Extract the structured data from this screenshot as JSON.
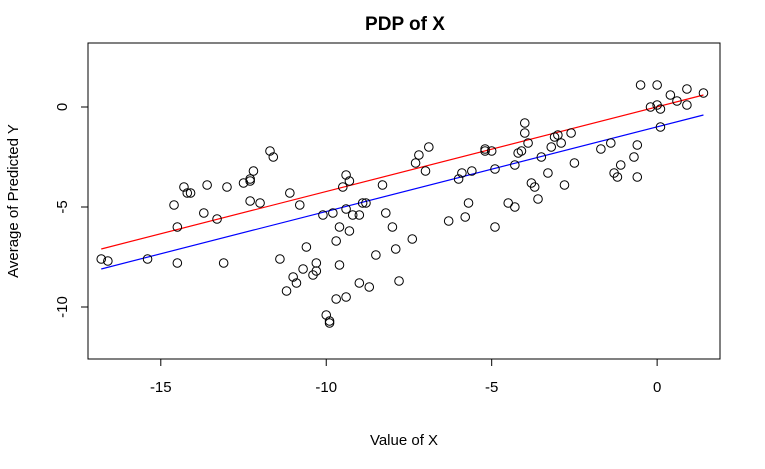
{
  "chart_data": {
    "type": "scatter",
    "title": "PDP of X",
    "xlabel": "Value of X",
    "ylabel": "Average of Predicted Y",
    "xlim": [
      -17.2,
      1.9
    ],
    "ylim": [
      -12.6,
      3.2
    ],
    "xticks": [
      -15,
      -10,
      -5,
      0
    ],
    "xtick_labels": [
      "-15",
      "-10",
      "-5",
      "0"
    ],
    "yticks": [
      -10,
      -5,
      0
    ],
    "ytick_labels": [
      "-10",
      "-5",
      "0"
    ],
    "grid": false,
    "points": [
      [
        -16.8,
        -7.6
      ],
      [
        -16.6,
        -7.7
      ],
      [
        -15.4,
        -7.6
      ],
      [
        -14.6,
        -4.9
      ],
      [
        -14.5,
        -6.0
      ],
      [
        -14.5,
        -7.8
      ],
      [
        -14.3,
        -4.0
      ],
      [
        -14.2,
        -4.3
      ],
      [
        -14.1,
        -4.3
      ],
      [
        -13.7,
        -5.3
      ],
      [
        -13.6,
        -3.9
      ],
      [
        -13.3,
        -5.6
      ],
      [
        -13.1,
        -7.8
      ],
      [
        -13.0,
        -4.0
      ],
      [
        -12.5,
        -3.8
      ],
      [
        -12.3,
        -3.7
      ],
      [
        -12.3,
        -4.7
      ],
      [
        -12.3,
        -3.6
      ],
      [
        -12.2,
        -3.2
      ],
      [
        -12.0,
        -4.8
      ],
      [
        -11.7,
        -2.2
      ],
      [
        -11.6,
        -2.5
      ],
      [
        -11.4,
        -7.6
      ],
      [
        -11.2,
        -9.2
      ],
      [
        -11.1,
        -4.3
      ],
      [
        -11.0,
        -8.5
      ],
      [
        -10.9,
        -8.8
      ],
      [
        -10.8,
        -4.9
      ],
      [
        -10.7,
        -8.1
      ],
      [
        -10.6,
        -7.0
      ],
      [
        -10.4,
        -8.4
      ],
      [
        -10.3,
        -8.2
      ],
      [
        -10.3,
        -7.8
      ],
      [
        -10.1,
        -5.4
      ],
      [
        -10.0,
        -10.4
      ],
      [
        -9.9,
        -10.8
      ],
      [
        -9.9,
        -10.7
      ],
      [
        -9.8,
        -5.3
      ],
      [
        -9.7,
        -6.7
      ],
      [
        -9.7,
        -9.6
      ],
      [
        -9.6,
        -6.0
      ],
      [
        -9.6,
        -7.9
      ],
      [
        -9.5,
        -4.0
      ],
      [
        -9.4,
        -3.4
      ],
      [
        -9.4,
        -5.1
      ],
      [
        -9.4,
        -9.5
      ],
      [
        -9.3,
        -3.7
      ],
      [
        -9.3,
        -6.2
      ],
      [
        -9.2,
        -5.4
      ],
      [
        -9.0,
        -5.4
      ],
      [
        -9.0,
        -8.8
      ],
      [
        -8.9,
        -4.8
      ],
      [
        -8.8,
        -4.8
      ],
      [
        -8.7,
        -9.0
      ],
      [
        -8.5,
        -7.4
      ],
      [
        -8.3,
        -3.9
      ],
      [
        -8.2,
        -5.3
      ],
      [
        -8.0,
        -6.0
      ],
      [
        -7.9,
        -7.1
      ],
      [
        -7.8,
        -8.7
      ],
      [
        -7.4,
        -6.6
      ],
      [
        -7.3,
        -2.8
      ],
      [
        -7.2,
        -2.4
      ],
      [
        -7.0,
        -3.2
      ],
      [
        -6.9,
        -2.0
      ],
      [
        -6.3,
        -5.7
      ],
      [
        -6.0,
        -3.6
      ],
      [
        -5.9,
        -3.3
      ],
      [
        -5.8,
        -5.5
      ],
      [
        -5.7,
        -4.8
      ],
      [
        -5.6,
        -3.2
      ],
      [
        -5.2,
        -2.2
      ],
      [
        -5.2,
        -2.1
      ],
      [
        -5.0,
        -2.2
      ],
      [
        -4.9,
        -6.0
      ],
      [
        -4.9,
        -3.1
      ],
      [
        -4.5,
        -4.8
      ],
      [
        -4.3,
        -2.9
      ],
      [
        -4.3,
        -5.0
      ],
      [
        -4.2,
        -2.3
      ],
      [
        -4.1,
        -2.2
      ],
      [
        -4.0,
        -0.8
      ],
      [
        -4.0,
        -1.3
      ],
      [
        -3.9,
        -1.8
      ],
      [
        -3.8,
        -3.8
      ],
      [
        -3.7,
        -4.0
      ],
      [
        -3.6,
        -4.6
      ],
      [
        -3.5,
        -2.5
      ],
      [
        -3.3,
        -3.3
      ],
      [
        -3.2,
        -2.0
      ],
      [
        -3.1,
        -1.5
      ],
      [
        -3.0,
        -1.4
      ],
      [
        -2.9,
        -1.8
      ],
      [
        -2.8,
        -3.9
      ],
      [
        -2.6,
        -1.3
      ],
      [
        -2.5,
        -2.8
      ],
      [
        -1.7,
        -2.1
      ],
      [
        -1.4,
        -1.8
      ],
      [
        -1.3,
        -3.3
      ],
      [
        -1.2,
        -3.5
      ],
      [
        -1.1,
        -2.9
      ],
      [
        -0.7,
        -2.5
      ],
      [
        -0.6,
        -1.9
      ],
      [
        -0.6,
        -3.5
      ],
      [
        -0.5,
        1.1
      ],
      [
        -0.2,
        0.0
      ],
      [
        0.0,
        0.1
      ],
      [
        0.0,
        1.1
      ],
      [
        0.1,
        -0.1
      ],
      [
        0.1,
        -1.0
      ],
      [
        0.4,
        0.6
      ],
      [
        0.6,
        0.3
      ],
      [
        0.9,
        0.9
      ],
      [
        0.9,
        0.1
      ],
      [
        1.4,
        0.7
      ]
    ],
    "lines": [
      {
        "color": "#ff0000",
        "from": [
          -16.8,
          -7.1
        ],
        "to": [
          1.4,
          0.6
        ]
      },
      {
        "color": "#0000ff",
        "from": [
          -16.8,
          -8.1
        ],
        "to": [
          1.4,
          -0.4
        ]
      }
    ]
  }
}
